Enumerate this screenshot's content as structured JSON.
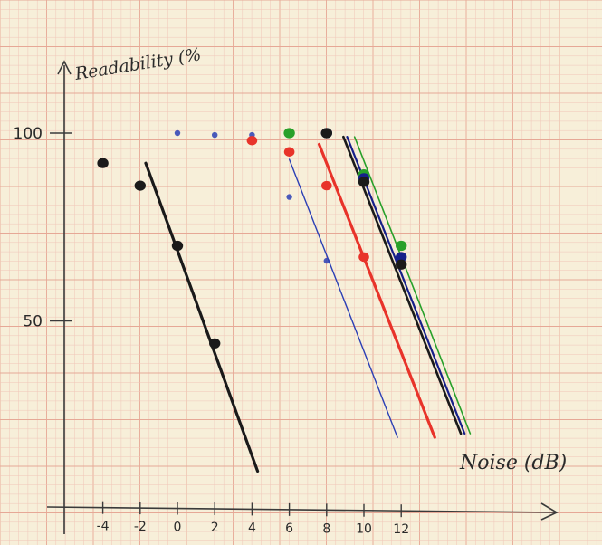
{
  "chart_data": {
    "type": "scatter",
    "title": "",
    "ylabel": "Readability (%",
    "xlabel": "Noise (dB)",
    "xlim": [
      -6.8,
      19.5
    ],
    "ylim": [
      -18,
      150
    ],
    "grid": true,
    "x_ticks": [
      -4,
      -2,
      0,
      2,
      4,
      6,
      8,
      10,
      12
    ],
    "x_tick_labels": [
      "-4",
      "-2",
      "0",
      "2",
      "4",
      "6",
      "8",
      "10",
      "12"
    ],
    "y_ticks": [
      50,
      100
    ],
    "y_tick_labels": [
      "50",
      "100"
    ],
    "colors": {
      "black": "#1a1a1a",
      "blue": "#2b3fb5",
      "red": "#e8332a",
      "green": "#28a02a",
      "darkblue": "#16208a",
      "axis": "#3a3a3a",
      "grid_minor": "#f0c6b8",
      "grid_major": "#e6a896"
    },
    "series": [
      {
        "color": "black",
        "points": [
          [
            -4,
            92
          ],
          [
            -2,
            86
          ],
          [
            0,
            70
          ],
          [
            2,
            44
          ]
        ],
        "fit": [
          [
            -1.7,
            92
          ],
          [
            4.3,
            10
          ]
        ],
        "fit_width": 3.2
      },
      {
        "color": "blue",
        "points": [
          [
            0,
            100
          ],
          [
            2,
            99.5
          ],
          [
            4,
            99.5
          ],
          [
            6,
            83
          ],
          [
            8,
            66
          ]
        ],
        "fit": [
          [
            6,
            93
          ],
          [
            11.8,
            19
          ]
        ],
        "fit_width": 1.4
      },
      {
        "color": "red",
        "points": [
          [
            4,
            98
          ],
          [
            6,
            95
          ],
          [
            8,
            86
          ],
          [
            10,
            67
          ]
        ],
        "fit": [
          [
            7.6,
            97
          ],
          [
            13.8,
            19
          ]
        ],
        "fit_width": 3.2
      },
      {
        "color": "green",
        "points": [
          [
            6,
            100
          ],
          [
            10,
            89
          ],
          [
            12,
            70
          ]
        ],
        "fit": [
          [
            9.5,
            99
          ],
          [
            15.7,
            20
          ]
        ],
        "fit_width": 1.6
      },
      {
        "color": "darkblue",
        "points": [
          [
            8,
            100
          ],
          [
            10,
            88
          ],
          [
            12,
            67
          ]
        ],
        "fit": [
          [
            9.1,
            99
          ],
          [
            15.4,
            20
          ]
        ],
        "fit_width": 2.2
      },
      {
        "color": "black",
        "points": [
          [
            8,
            100
          ],
          [
            10,
            87
          ],
          [
            12,
            65
          ]
        ],
        "fit": [
          [
            8.9,
            99
          ],
          [
            15.2,
            20
          ]
        ],
        "fit_width": 2.6
      }
    ]
  }
}
